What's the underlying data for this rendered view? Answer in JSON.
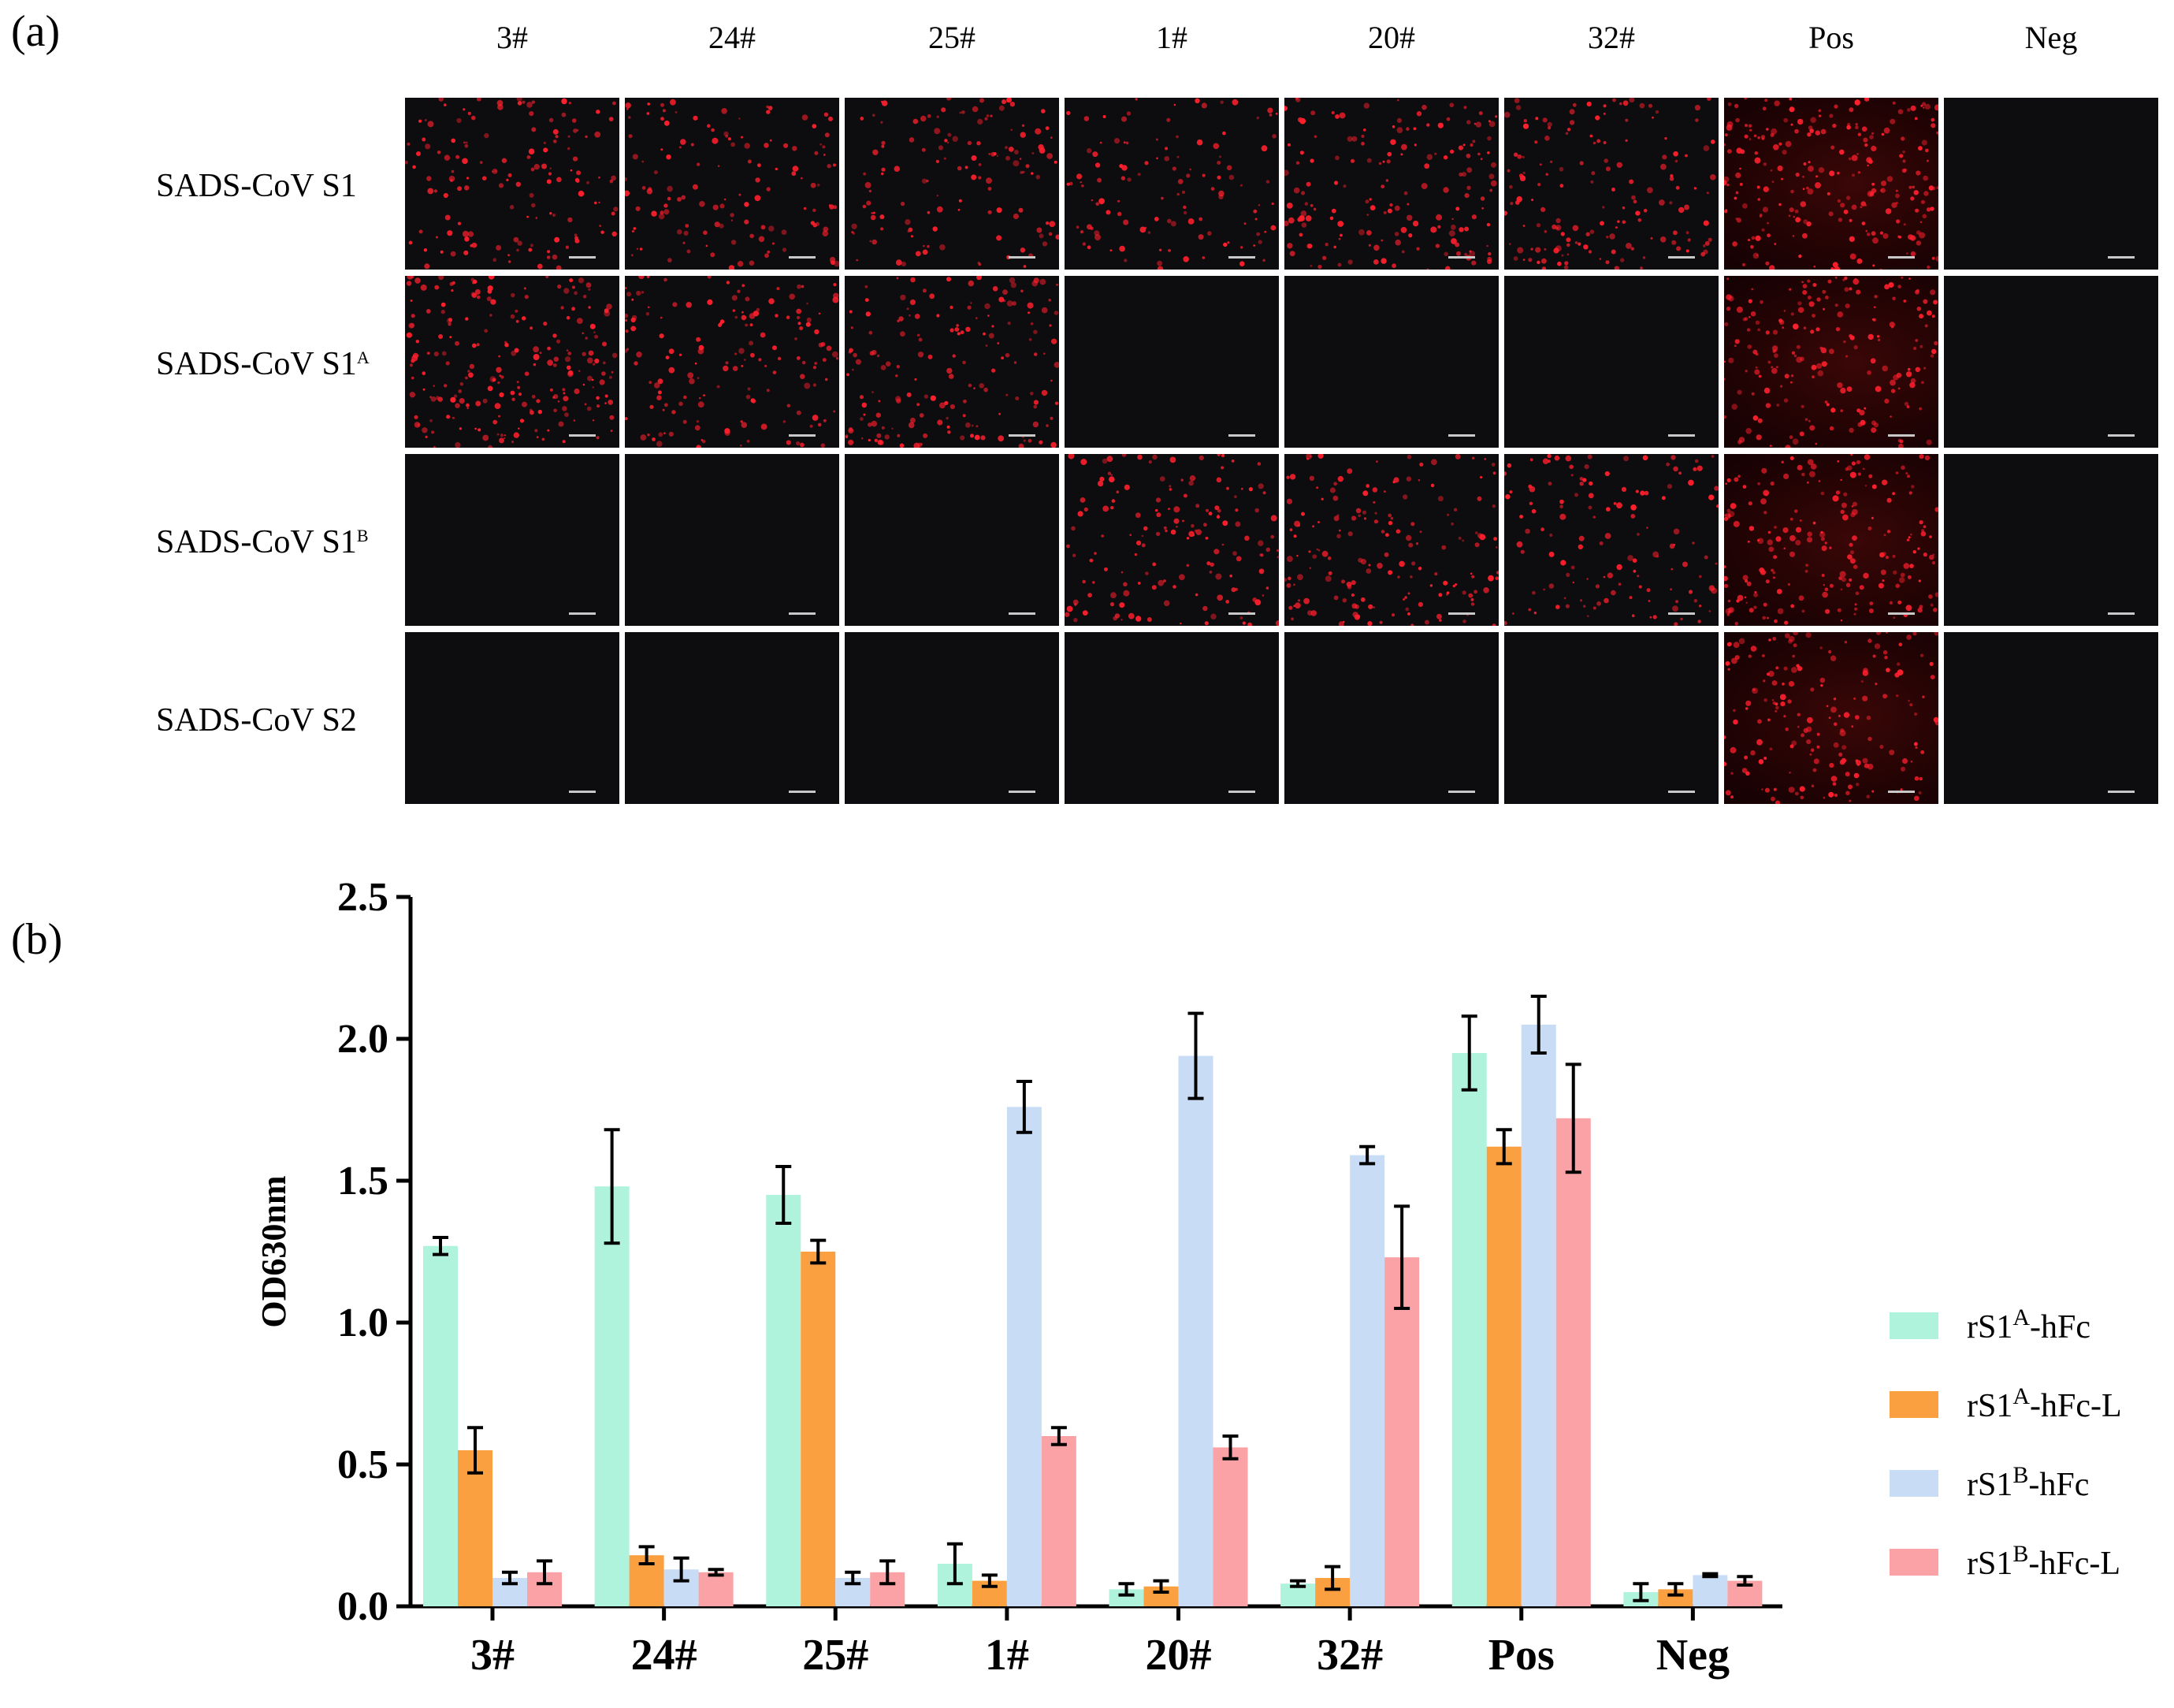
{
  "panel_a": {
    "label": "(a)",
    "columns": [
      "3#",
      "24#",
      "25#",
      "1#",
      "20#",
      "32#",
      "Pos",
      "Neg"
    ],
    "rows": [
      {
        "text": "SADS-CoV S1",
        "sup": ""
      },
      {
        "text": "SADS-CoV S1",
        "sup": "A"
      },
      {
        "text": "SADS-CoV S1",
        "sup": "B"
      },
      {
        "text": "SADS-CoV S2",
        "sup": ""
      }
    ],
    "fluorescence": [
      [
        0.55,
        0.5,
        0.5,
        0.45,
        0.65,
        0.6,
        0.9,
        0
      ],
      [
        0.85,
        0.6,
        0.65,
        0,
        0,
        0,
        0.75,
        0
      ],
      [
        0,
        0,
        0,
        0.6,
        0.65,
        0.5,
        0.8,
        0
      ],
      [
        0,
        0,
        0,
        0,
        0,
        0,
        0.7,
        0
      ]
    ],
    "signal_color": "#ff1f2d"
  },
  "panel_b": {
    "label": "(b)"
  },
  "chart_data": {
    "type": "bar",
    "title": "",
    "xlabel": "",
    "ylabel": "OD630nm",
    "ylim": [
      0,
      2.5
    ],
    "yticks": [
      "0.0",
      "0.5",
      "1.0",
      "1.5",
      "2.0",
      "2.5"
    ],
    "categories": [
      "3#",
      "24#",
      "25#",
      "1#",
      "20#",
      "32#",
      "Pos",
      "Neg"
    ],
    "series": [
      {
        "name": "rS1",
        "sup": "A",
        "suffix": "-hFc",
        "color": "#aff3dc",
        "values": [
          1.27,
          1.48,
          1.45,
          0.15,
          0.06,
          0.08,
          1.95,
          0.05
        ],
        "errors": [
          0.03,
          0.2,
          0.1,
          0.07,
          0.02,
          0.01,
          0.13,
          0.03
        ]
      },
      {
        "name": "rS1",
        "sup": "A",
        "suffix": "-hFc-L",
        "color": "#fba040",
        "values": [
          0.55,
          0.18,
          1.25,
          0.09,
          0.07,
          0.1,
          1.62,
          0.06
        ],
        "errors": [
          0.08,
          0.03,
          0.04,
          0.02,
          0.02,
          0.04,
          0.06,
          0.02
        ]
      },
      {
        "name": "rS1",
        "sup": "B",
        "suffix": "-hFc",
        "color": "#c9dcf6",
        "values": [
          0.1,
          0.13,
          0.1,
          1.76,
          1.94,
          1.59,
          2.05,
          0.11
        ],
        "errors": [
          0.02,
          0.04,
          0.02,
          0.09,
          0.15,
          0.03,
          0.1,
          0.005
        ]
      },
      {
        "name": "rS1",
        "sup": "B",
        "suffix": "-hFc-L",
        "color": "#faa2a5",
        "values": [
          0.12,
          0.12,
          0.12,
          0.6,
          0.56,
          1.23,
          1.72,
          0.09
        ],
        "errors": [
          0.04,
          0.01,
          0.04,
          0.03,
          0.04,
          0.18,
          0.19,
          0.015
        ]
      }
    ],
    "legend_position": "right"
  }
}
